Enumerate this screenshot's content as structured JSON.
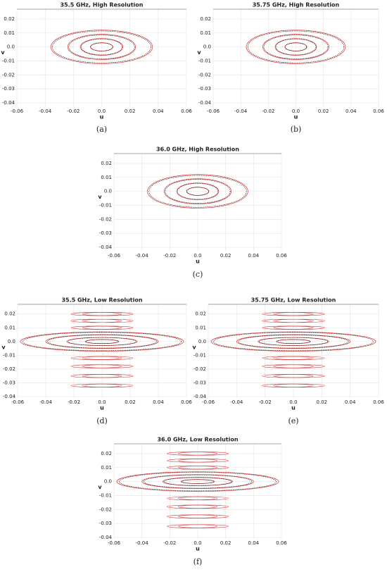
{
  "chart_data": [
    {
      "type": "contour",
      "title": "35.5 GHz, High Resolution",
      "caption": "(a)",
      "x_label": "u",
      "y_label": "v",
      "xlim": [
        -0.06,
        0.06
      ],
      "ylim": [
        -0.043,
        0.027
      ],
      "xticks": [
        -0.06,
        -0.04,
        -0.02,
        {
          "value": 0,
          "label": "0.0"
        },
        0.02,
        0.04,
        0.06
      ],
      "yticks": [
        0.02,
        0.01,
        {
          "value": 0,
          "label": "0.0"
        },
        -0.01,
        -0.02,
        -0.03,
        -0.04
      ]
    },
    {
      "type": "contour",
      "title": "35.75 GHz, High Resolution",
      "caption": "(b)",
      "x_label": "u",
      "y_label": "v",
      "xlim": [
        -0.06,
        0.06
      ],
      "ylim": [
        -0.043,
        0.027
      ],
      "xticks": [
        -0.06,
        -0.04,
        -0.02,
        {
          "value": 0,
          "label": "0.0"
        },
        0.02,
        0.04,
        0.06
      ],
      "yticks": [
        0.02,
        0.01,
        {
          "value": 0,
          "label": "0.0"
        },
        -0.01,
        -0.02,
        -0.03,
        -0.04
      ]
    },
    {
      "type": "contour",
      "title": "36.0 GHz, High Resolution",
      "caption": "(c)",
      "x_label": "u",
      "y_label": "v",
      "xlim": [
        -0.06,
        0.06
      ],
      "ylim": [
        -0.043,
        0.027
      ],
      "xticks": [
        -0.06,
        -0.04,
        -0.02,
        {
          "value": 0,
          "label": "0.0"
        },
        0.02,
        0.04,
        0.06
      ],
      "yticks": [
        0.02,
        0.01,
        {
          "value": 0,
          "label": "0.0"
        },
        -0.01,
        -0.02,
        -0.03,
        -0.04
      ]
    },
    {
      "type": "contour",
      "title": "35.5 GHz, Low Resolution",
      "caption": "(d)",
      "x_label": "u",
      "y_label": "v",
      "xlim": [
        -0.06,
        0.06
      ],
      "ylim": [
        -0.041,
        0.027
      ],
      "xticks": [
        -0.06,
        -0.04,
        -0.02,
        {
          "value": 0,
          "label": "0.0"
        },
        0.02,
        0.04,
        0.06
      ],
      "yticks": [
        0.02,
        0.01,
        {
          "value": 0,
          "label": "0.0"
        },
        -0.01,
        -0.02,
        -0.03,
        -0.04
      ]
    },
    {
      "type": "contour",
      "title": "35.75 GHz, Low Resolution",
      "caption": "(e)",
      "x_label": "u",
      "y_label": "v",
      "xlim": [
        -0.06,
        0.06
      ],
      "ylim": [
        -0.041,
        0.027
      ],
      "xticks": [
        -0.06,
        -0.04,
        -0.02,
        {
          "value": 0,
          "label": "0.0"
        },
        0.02,
        0.04,
        0.06
      ],
      "yticks": [
        0.02,
        0.01,
        {
          "value": 0,
          "label": "0.0"
        },
        -0.01,
        -0.02,
        -0.03,
        -0.04
      ]
    },
    {
      "type": "contour",
      "title": "36.0 GHz, Low Resolution",
      "caption": "(f)",
      "x_label": "u",
      "y_label": "v",
      "xlim": [
        -0.06,
        0.06
      ],
      "ylim": [
        -0.041,
        0.027
      ],
      "xticks": [
        -0.06,
        -0.04,
        -0.02,
        {
          "value": 0,
          "label": "0.0"
        },
        0.02,
        0.04,
        0.06
      ],
      "yticks": [
        0.02,
        0.01,
        {
          "value": 0,
          "label": "0.0"
        },
        -0.01,
        -0.02,
        -0.03,
        -0.04
      ]
    }
  ]
}
